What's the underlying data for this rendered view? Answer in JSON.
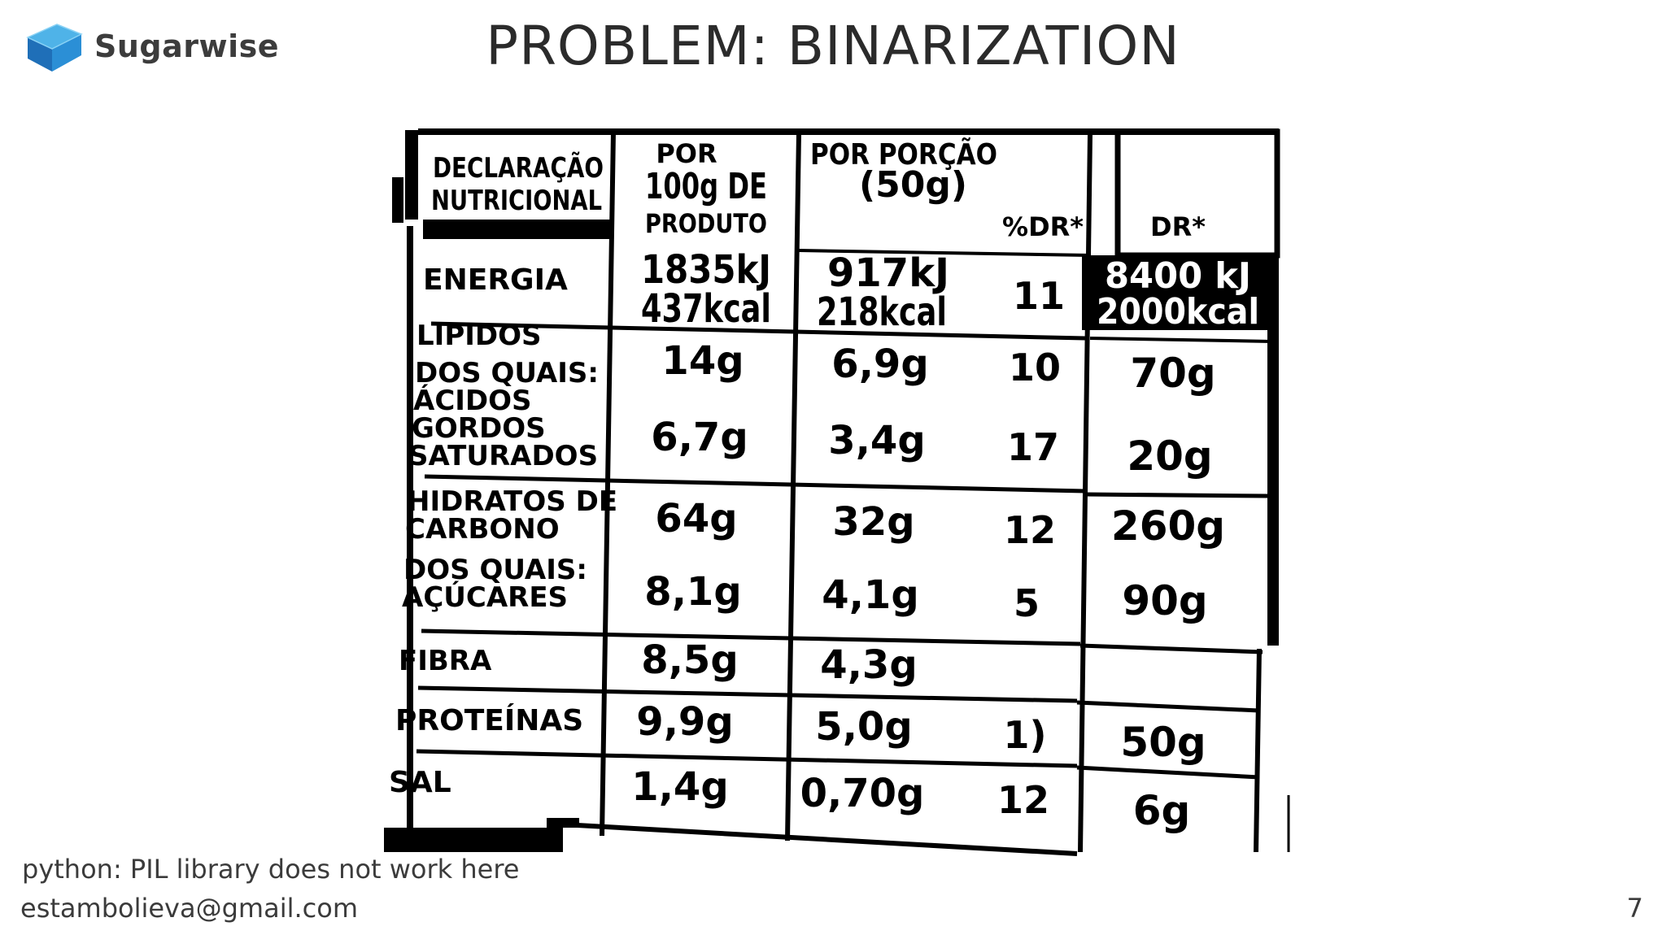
{
  "brand": {
    "name": "Sugarwise"
  },
  "slide": {
    "title": "PROBLEM: BINARIZATION",
    "page_number": "7"
  },
  "footer": {
    "note": "python: PIL library does not work here",
    "email": "estambolieva@gmail.com"
  },
  "nutrition_label": {
    "header": {
      "col1": [
        "DECLARAÇÃO",
        "NUTRICIONAL"
      ],
      "col2": [
        "POR",
        "100g DE",
        "PRODUTO"
      ],
      "col3": [
        "POR PORÇÃO",
        "(50g)"
      ],
      "col4": "%DR*",
      "col5": "DR*"
    },
    "rows": {
      "energia": {
        "name": [
          "ENERGIA"
        ],
        "per100": [
          "1835kJ",
          "437kcal"
        ],
        "portion": [
          "917kJ",
          "218kcal"
        ],
        "dr_pct": "11",
        "dr": [
          "8400 kJ",
          "2000kcal"
        ]
      },
      "lipidos": {
        "name": [
          "LIPIDOS"
        ],
        "per100": "14g",
        "portion": "6,9g",
        "dr_pct": "10",
        "dr": "70g"
      },
      "saturados": {
        "name": [
          "DOS QUAIS:",
          "ÁCIDOS",
          "GORDOS",
          "SATURADOS"
        ],
        "per100": "6,7g",
        "portion": "3,4g",
        "dr_pct": "17",
        "dr": "20g"
      },
      "hidratos": {
        "name": [
          "HIDRATOS DE",
          "CARBONO"
        ],
        "per100": "64g",
        "portion": "32g",
        "dr_pct": "12",
        "dr": "260g"
      },
      "acucares": {
        "name": [
          "DOS QUAIS:",
          "AÇÚCARES"
        ],
        "per100": "8,1g",
        "portion": "4,1g",
        "dr_pct": "5",
        "dr": "90g"
      },
      "fibra": {
        "name": [
          "FIBRA"
        ],
        "per100": "8,5g",
        "portion": "4,3g",
        "dr_pct": "",
        "dr": ""
      },
      "proteinas": {
        "name": [
          "PROTEÍNAS"
        ],
        "per100": "9,9g",
        "portion": "5,0g",
        "dr_pct": "1)",
        "dr": "50g"
      },
      "sal": {
        "name": [
          "SAL"
        ],
        "per100": "1,4g",
        "portion": "0,70g",
        "dr_pct": "12",
        "dr": "6g"
      }
    }
  }
}
